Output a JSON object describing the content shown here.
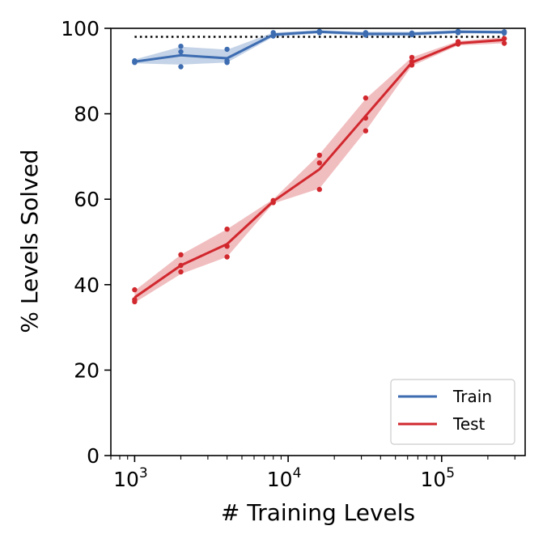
{
  "chart_data": {
    "type": "line",
    "xlabel": "# Training Levels",
    "ylabel": "% Levels Solved",
    "xscale": "log",
    "xlim": [
      700,
      350000
    ],
    "ylim": [
      0,
      100
    ],
    "xticks": [
      {
        "value": 1000,
        "base": "10",
        "exp": "3"
      },
      {
        "value": 10000,
        "base": "10",
        "exp": "4"
      },
      {
        "value": 100000,
        "base": "10",
        "exp": "5"
      }
    ],
    "yticks": [
      "0",
      "20",
      "40",
      "60",
      "80",
      "100"
    ],
    "reference_line": {
      "y": 98,
      "style": "dotted",
      "color": "#000000"
    },
    "legend": {
      "position": "lower-right"
    },
    "series": [
      {
        "name": "Train",
        "color": "#3d6cb1",
        "x": [
          1000,
          2000,
          4000,
          8000,
          16000,
          32000,
          64000,
          128000,
          256000
        ],
        "mean": [
          92.2,
          93.7,
          93.0,
          98.5,
          99.2,
          98.7,
          98.7,
          99.2,
          99.1
        ],
        "band_low": [
          91.8,
          91.5,
          92.0,
          98.0,
          98.8,
          98.2,
          98.2,
          98.8,
          98.7
        ],
        "band_high": [
          92.7,
          95.7,
          95.0,
          99.0,
          99.6,
          99.2,
          99.2,
          99.6,
          99.5
        ],
        "points": [
          [
            1000,
            92.4
          ],
          [
            1000,
            92.0
          ],
          [
            1000,
            92.1
          ],
          [
            2000,
            95.8
          ],
          [
            2000,
            94.5
          ],
          [
            2000,
            91.0
          ],
          [
            4000,
            95.1
          ],
          [
            4000,
            92.4
          ],
          [
            4000,
            92.0
          ],
          [
            8000,
            99.0
          ],
          [
            8000,
            98.2
          ],
          [
            16000,
            99.3
          ],
          [
            16000,
            99.0
          ],
          [
            32000,
            99.0
          ],
          [
            32000,
            98.4
          ],
          [
            64000,
            98.9
          ],
          [
            64000,
            98.5
          ],
          [
            128000,
            99.3
          ],
          [
            128000,
            99.0
          ],
          [
            256000,
            99.2
          ],
          [
            256000,
            98.9
          ]
        ]
      },
      {
        "name": "Test",
        "color": "#d1282e",
        "x": [
          1000,
          2000,
          4000,
          8000,
          16000,
          32000,
          64000,
          128000,
          256000
        ],
        "mean": [
          37.0,
          44.5,
          49.5,
          59.5,
          67.0,
          79.5,
          92.0,
          96.5,
          97.3
        ],
        "band_low": [
          35.8,
          42.5,
          46.5,
          59.0,
          62.5,
          76.0,
          91.2,
          96.0,
          96.5
        ],
        "band_high": [
          38.6,
          47.0,
          53.0,
          60.0,
          70.5,
          83.5,
          93.2,
          97.0,
          97.9
        ],
        "points": [
          [
            1000,
            38.8
          ],
          [
            1000,
            36.5
          ],
          [
            1000,
            36.0
          ],
          [
            2000,
            47.0
          ],
          [
            2000,
            44.5
          ],
          [
            2000,
            43.0
          ],
          [
            4000,
            53.0
          ],
          [
            4000,
            49.0
          ],
          [
            4000,
            46.5
          ],
          [
            8000,
            59.7
          ],
          [
            8000,
            59.2
          ],
          [
            16000,
            70.3
          ],
          [
            16000,
            68.5
          ],
          [
            16000,
            62.3
          ],
          [
            32000,
            83.7
          ],
          [
            32000,
            79.0
          ],
          [
            32000,
            76.0
          ],
          [
            64000,
            93.2
          ],
          [
            64000,
            92.2
          ],
          [
            64000,
            91.4
          ],
          [
            128000,
            96.9
          ],
          [
            128000,
            96.3
          ],
          [
            256000,
            97.6
          ],
          [
            256000,
            96.5
          ]
        ]
      }
    ]
  }
}
